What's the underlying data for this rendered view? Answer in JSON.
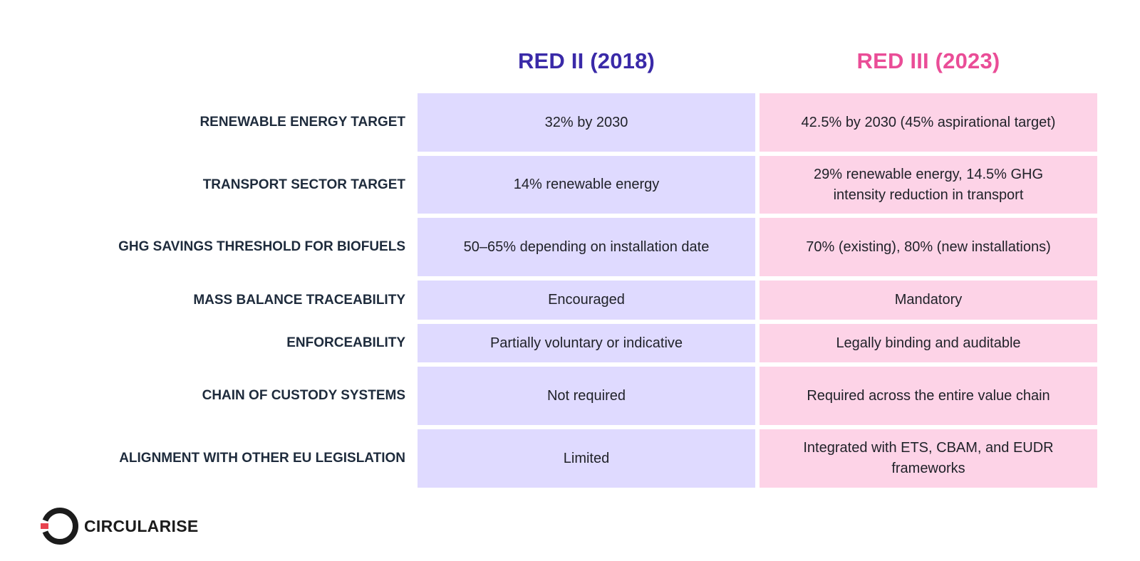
{
  "columns": {
    "red2": "RED II (2018)",
    "red3": "RED III (2023)"
  },
  "rows": [
    {
      "label": "RENEWABLE ENERGY TARGET",
      "red2": "32% by 2030",
      "red3": "42.5% by 2030 (45% aspirational target)"
    },
    {
      "label": "TRANSPORT SECTOR TARGET",
      "red2": "14% renewable energy",
      "red3": "29% renewable energy, 14.5% GHG intensity reduction in transport"
    },
    {
      "label": "GHG SAVINGS THRESHOLD FOR BIOFUELS",
      "red2": "50–65% depending on installation date",
      "red3": "70% (existing), 80% (new installations)"
    },
    {
      "label": "MASS BALANCE TRACEABILITY",
      "red2": "Encouraged",
      "red3": "Mandatory"
    },
    {
      "label": "ENFORCEABILITY",
      "red2": "Partially voluntary or indicative",
      "red3": "Legally binding and auditable"
    },
    {
      "label": "CHAIN OF CUSTODY SYSTEMS",
      "red2": "Not required",
      "red3": "Required across the entire value chain"
    },
    {
      "label": "ALIGNMENT WITH OTHER EU LEGISLATION",
      "red2": "Limited",
      "red3": "Integrated with ETS, CBAM, and EUDR frameworks"
    }
  ],
  "logo": {
    "text": "CIRCULARISE",
    "icon": "ring-logo-icon",
    "colors": {
      "ring": "#1c1c1c",
      "accent": "#e8434f"
    }
  },
  "colors": {
    "red2_heading": "#3a2aa8",
    "red3_heading": "#ea4d97",
    "red2_cell": "#dfdaff",
    "red3_cell": "#fdd3e7",
    "label": "#1e2b3c"
  }
}
